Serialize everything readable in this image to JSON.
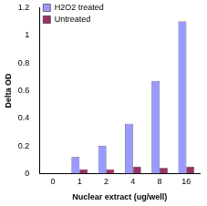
{
  "chart_data": {
    "type": "bar",
    "x_label": "Nuclear extract (ug/well)",
    "y_label": "Delta OD",
    "categories": [
      "0",
      "1",
      "2",
      "4",
      "8",
      "16"
    ],
    "series": [
      {
        "name": "H2O2 treated",
        "color": "#9999ff",
        "values": [
          0,
          0.12,
          0.2,
          0.36,
          0.67,
          1.1
        ]
      },
      {
        "name": "Untreated",
        "color": "#993366",
        "values": [
          0,
          0.03,
          0.03,
          0.05,
          0.04,
          0.05
        ]
      }
    ],
    "ylim": [
      0,
      1.2
    ],
    "yticks": [
      0,
      0.2,
      0.4,
      0.6,
      0.8,
      1,
      1.2
    ],
    "grid": false,
    "legend": "top-left"
  }
}
